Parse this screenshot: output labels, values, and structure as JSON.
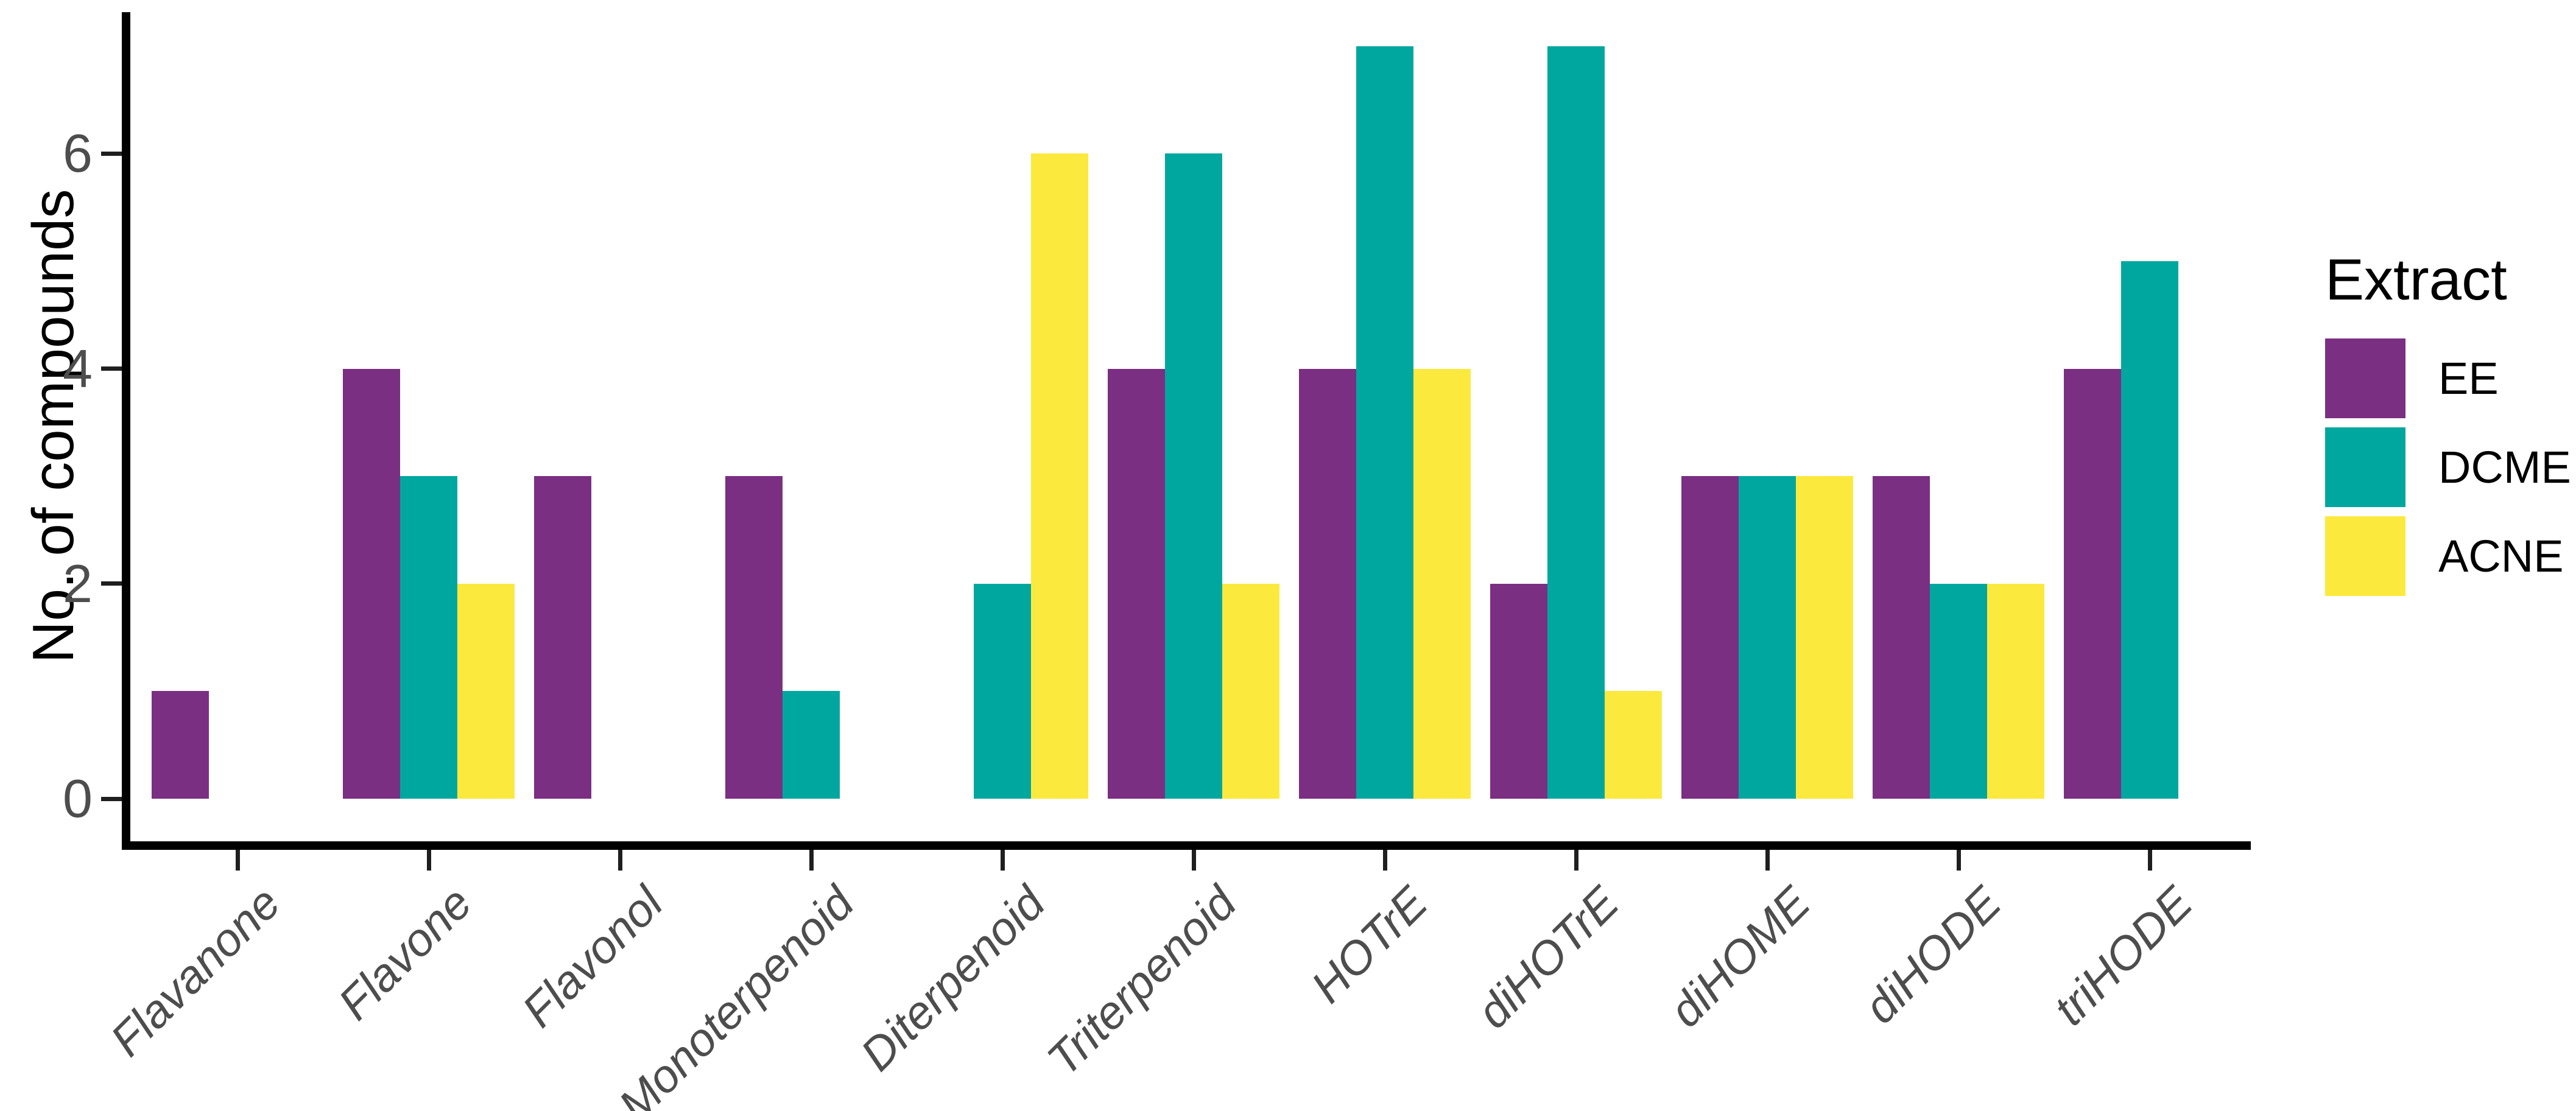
{
  "chart_data": {
    "type": "bar",
    "bar_mode": "grouped",
    "title": "",
    "xlabel": "",
    "ylabel": "No. of compounds",
    "categories": [
      "Flavanone",
      "Flavone",
      "Flavonol",
      "Monoterpenoid",
      "Diterpenoid",
      "Triterpenoid",
      "HOTrE",
      "diHOTrE",
      "diHOME",
      "diHODE",
      "triHODE"
    ],
    "series": [
      {
        "name": "EE",
        "color": "#7A2F82",
        "values": [
          1,
          4,
          3,
          3,
          null,
          4,
          4,
          2,
          3,
          3,
          4
        ]
      },
      {
        "name": "DCME",
        "color": "#00A79F",
        "values": [
          null,
          3,
          null,
          1,
          2,
          6,
          7,
          7,
          3,
          2,
          5
        ]
      },
      {
        "name": "ACNE",
        "color": "#FCE93E",
        "values": [
          null,
          2,
          null,
          null,
          6,
          2,
          4,
          1,
          3,
          2,
          null
        ]
      }
    ],
    "yticks": [
      0,
      2,
      4,
      6
    ],
    "ylim": [
      0,
      7.35
    ],
    "grid": false,
    "legend": {
      "title": "Extract",
      "position": "right"
    },
    "colors": {
      "axis_text": "#4D4D4D",
      "axis_line": "#000000",
      "background": "#FFFFFF",
      "legend_text": "#000000"
    }
  }
}
